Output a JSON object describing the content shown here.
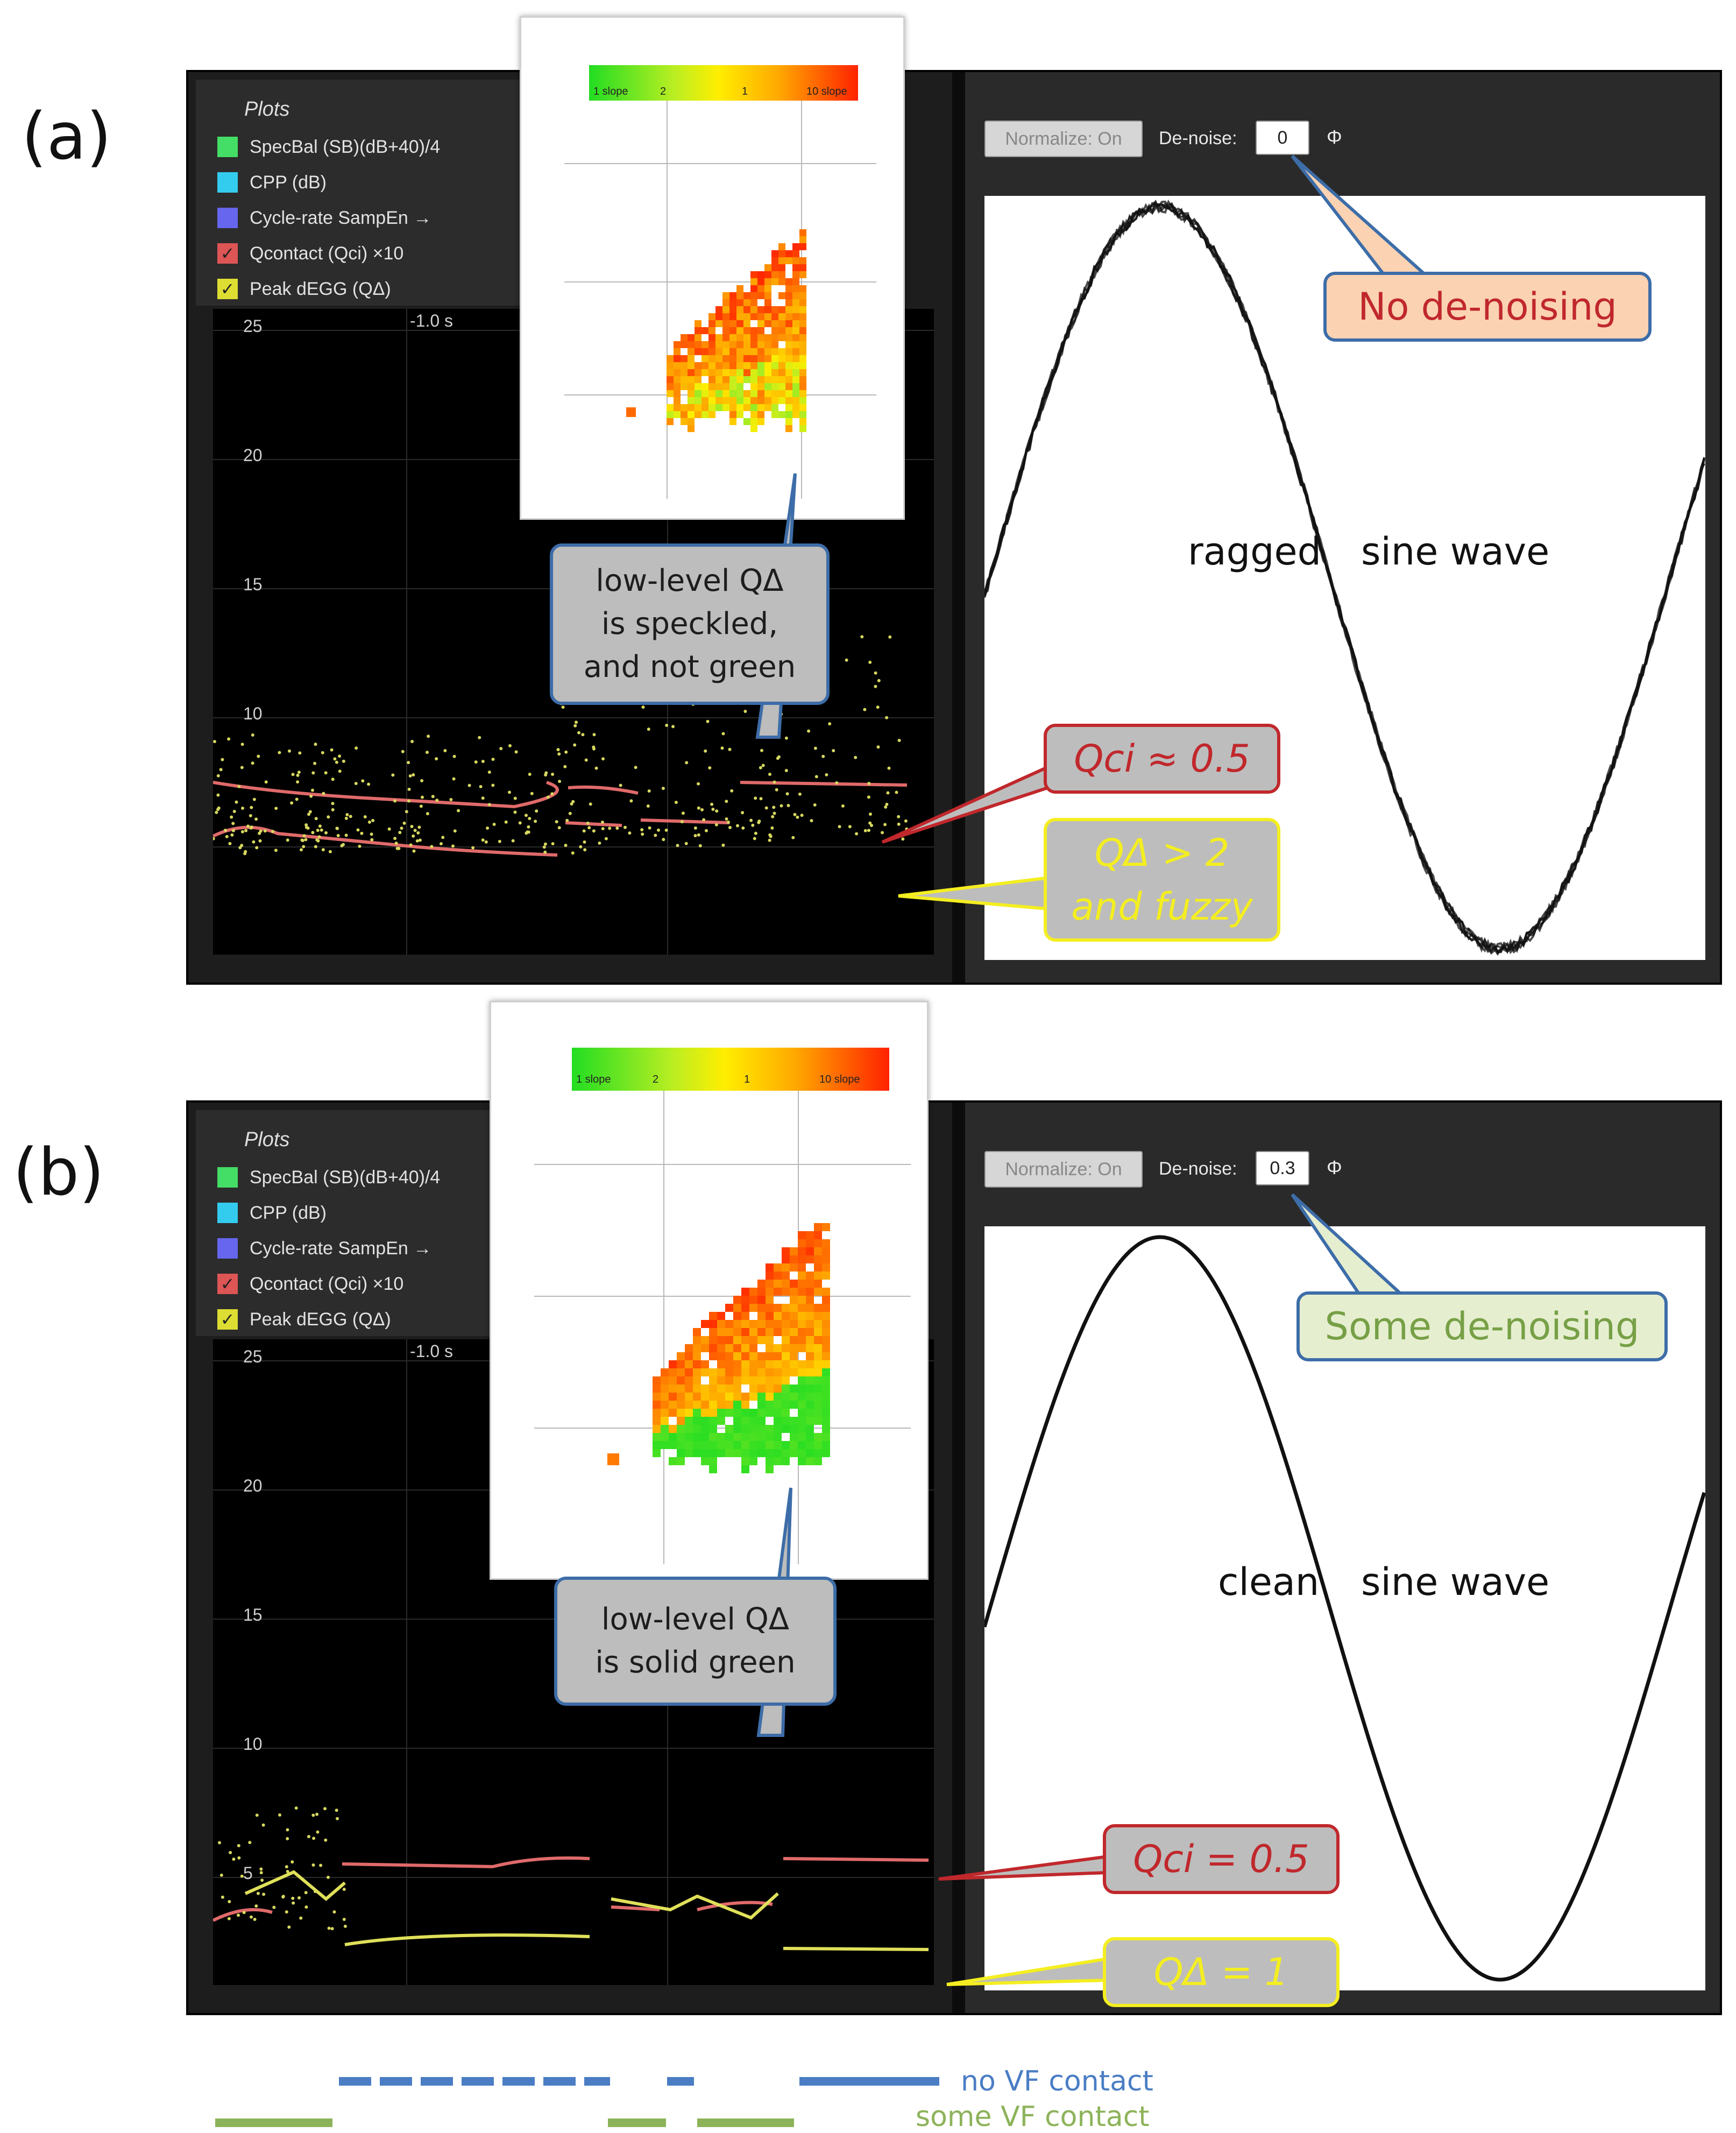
{
  "panels": [
    {
      "label": "(a)",
      "plots_title": "Plots",
      "legend_items": [
        {
          "label": "SpecBal (SB)(dB+40)/4",
          "color": "#44dd66",
          "checked": false
        },
        {
          "label": "CPP (dB)",
          "color": "#33ccee",
          "checked": false
        },
        {
          "label": "Cycle-rate SampEn →",
          "color": "#6666ee",
          "checked": false
        },
        {
          "label": "Qcontact (Qci) ×10",
          "color": "#dd5555",
          "checked": true
        },
        {
          "label": "Peak dEGG (QΔ)",
          "color": "#dddd33",
          "checked": true
        }
      ],
      "y_ticks": [
        "25",
        "20",
        "15",
        "10"
      ],
      "time_label": "-1.0 s",
      "normalize_label": "Normalize: On",
      "denoise_label": "De-noise:",
      "denoise_value": "0",
      "phase_icon": "Φ",
      "wave_text_left": "ragged",
      "wave_text_right": "sine wave",
      "inset_colorbar_labels": [
        "1 slope",
        "2",
        "1",
        "10 slope"
      ],
      "callouts": {
        "inset_note_lines": [
          "low-level  QΔ",
          "is speckled,",
          "and not green"
        ],
        "qci": "Qci ≈ 0.5",
        "qdelta_lines": [
          "QΔ > 2",
          "and fuzzy"
        ],
        "denoise_note": "No de-noising"
      }
    },
    {
      "label": "(b)",
      "plots_title": "Plots",
      "legend_items": [
        {
          "label": "SpecBal (SB)(dB+40)/4",
          "color": "#44dd66",
          "checked": false
        },
        {
          "label": "CPP (dB)",
          "color": "#33ccee",
          "checked": false
        },
        {
          "label": "Cycle-rate SampEn →",
          "color": "#6666ee",
          "checked": false
        },
        {
          "label": "Qcontact (Qci) ×10",
          "color": "#dd5555",
          "checked": true
        },
        {
          "label": "Peak dEGG (QΔ)",
          "color": "#dddd33",
          "checked": true
        }
      ],
      "y_ticks": [
        "25",
        "20",
        "15",
        "10",
        "5"
      ],
      "time_label": "-1.0 s",
      "normalize_label": "Normalize: On",
      "denoise_label": "De-noise:",
      "denoise_value": "0.3",
      "phase_icon": "Φ",
      "wave_text_left": "clean",
      "wave_text_right": "sine wave",
      "inset_colorbar_labels": [
        "1 slope",
        "2",
        "1",
        "10 slope"
      ],
      "callouts": {
        "inset_note_lines": [
          "low-level  QΔ",
          "is solid green"
        ],
        "qci": "Qci = 0.5",
        "qdelta_lines": [
          "QΔ = 1"
        ],
        "denoise_note": "Some de-noising"
      }
    }
  ],
  "bottom_legend": {
    "no_contact": "no VF contact",
    "some_contact": "some VF contact",
    "no_contact_color": "#4a7dc4",
    "some_contact_color": "#8db35a"
  }
}
